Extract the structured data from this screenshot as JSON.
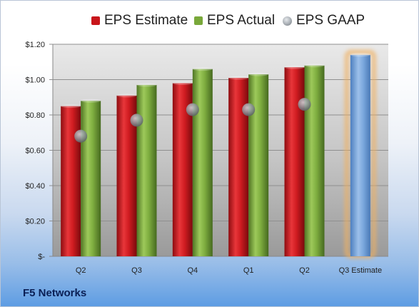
{
  "chart_data": {
    "type": "bar",
    "categories": [
      "Q2",
      "Q3",
      "Q4",
      "Q1",
      "Q2",
      "Q3 Estimate"
    ],
    "series": [
      {
        "name": "EPS Estimate",
        "type": "bar",
        "color": "#c8161b",
        "values": [
          0.85,
          0.91,
          0.98,
          1.01,
          1.07,
          null
        ]
      },
      {
        "name": "EPS Actual",
        "type": "bar",
        "color": "#79a83a",
        "values": [
          0.88,
          0.97,
          1.06,
          1.03,
          1.08,
          null
        ]
      },
      {
        "name": "EPS GAAP",
        "type": "scatter",
        "color": "#9aa0a6",
        "values": [
          0.68,
          0.77,
          0.83,
          0.83,
          0.86,
          null
        ]
      },
      {
        "name": "",
        "type": "bar",
        "color": "#6a9ad4",
        "highlight": "#f0b060",
        "values": [
          null,
          null,
          null,
          null,
          null,
          1.14
        ]
      }
    ],
    "yticks": [
      "$-",
      "$0.20",
      "$0.40",
      "$0.60",
      "$0.80",
      "$1.00",
      "$1.20"
    ],
    "ylim": [
      0,
      1.2
    ],
    "grid": true,
    "legend_position": "top",
    "title": "",
    "xlabel": "",
    "ylabel": ""
  },
  "legend": [
    {
      "label": "EPS Estimate",
      "color": "#c8161b",
      "shape": "square"
    },
    {
      "label": "EPS Actual",
      "color": "#79a83a",
      "shape": "square"
    },
    {
      "label": "EPS GAAP",
      "color": "#a8aeb4",
      "shape": "sphere"
    }
  ],
  "footer": {
    "company": "F5 Networks"
  }
}
